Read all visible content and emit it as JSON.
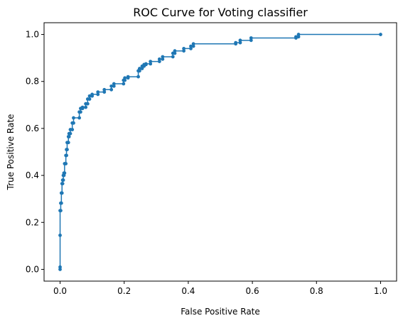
{
  "chart_data": {
    "type": "line",
    "title": "ROC Curve for Voting classifier",
    "xlabel": "False Positive Rate",
    "ylabel": "True Positive Rate",
    "xlim": [
      -0.05,
      1.05
    ],
    "ylim": [
      -0.05,
      1.05
    ],
    "xticks": [
      "0.0",
      "0.2",
      "0.4",
      "0.6",
      "0.8",
      "1.0"
    ],
    "yticks": [
      "0.0",
      "0.2",
      "0.4",
      "0.6",
      "0.8",
      "1.0"
    ],
    "grid": false,
    "legend": "none",
    "marker": "dot",
    "color": "#1f77b4",
    "series": [
      {
        "x": [
          0.0,
          0.0,
          0.0,
          0.0,
          0.002,
          0.002,
          0.004,
          0.004,
          0.006,
          0.006,
          0.008,
          0.008,
          0.01,
          0.01,
          0.012,
          0.012,
          0.014,
          0.014,
          0.018,
          0.018,
          0.02,
          0.02,
          0.022,
          0.022,
          0.026,
          0.026,
          0.028,
          0.028,
          0.032,
          0.032,
          0.038,
          0.038,
          0.042,
          0.042,
          0.06,
          0.06,
          0.064,
          0.064,
          0.07,
          0.07,
          0.08,
          0.08,
          0.086,
          0.086,
          0.092,
          0.092,
          0.1,
          0.1,
          0.118,
          0.118,
          0.138,
          0.138,
          0.16,
          0.16,
          0.168,
          0.168,
          0.198,
          0.198,
          0.202,
          0.202,
          0.212,
          0.212,
          0.244,
          0.244,
          0.248,
          0.248,
          0.256,
          0.256,
          0.262,
          0.262,
          0.268,
          0.268,
          0.282,
          0.282,
          0.31,
          0.31,
          0.32,
          0.32,
          0.352,
          0.352,
          0.358,
          0.358,
          0.386,
          0.386,
          0.408,
          0.408,
          0.416,
          0.416,
          0.548,
          0.548,
          0.562,
          0.562,
          0.596,
          0.596,
          0.736,
          0.736,
          0.744,
          0.744,
          1.0
        ],
        "y": [
          0.0,
          0.01,
          0.145,
          0.25,
          0.25,
          0.282,
          0.282,
          0.325,
          0.325,
          0.365,
          0.365,
          0.38,
          0.38,
          0.4,
          0.4,
          0.41,
          0.41,
          0.45,
          0.45,
          0.485,
          0.485,
          0.51,
          0.51,
          0.54,
          0.54,
          0.565,
          0.565,
          0.578,
          0.578,
          0.595,
          0.595,
          0.623,
          0.623,
          0.645,
          0.645,
          0.67,
          0.67,
          0.685,
          0.685,
          0.69,
          0.69,
          0.705,
          0.705,
          0.725,
          0.725,
          0.738,
          0.738,
          0.745,
          0.745,
          0.755,
          0.755,
          0.765,
          0.765,
          0.78,
          0.78,
          0.79,
          0.79,
          0.805,
          0.805,
          0.815,
          0.815,
          0.82,
          0.82,
          0.845,
          0.845,
          0.855,
          0.855,
          0.865,
          0.865,
          0.872,
          0.872,
          0.875,
          0.875,
          0.885,
          0.885,
          0.895,
          0.895,
          0.905,
          0.905,
          0.92,
          0.92,
          0.93,
          0.93,
          0.94,
          0.94,
          0.95,
          0.95,
          0.96,
          0.96,
          0.965,
          0.965,
          0.975,
          0.975,
          0.985,
          0.985,
          0.99,
          0.99,
          1.0,
          1.0
        ]
      }
    ]
  }
}
